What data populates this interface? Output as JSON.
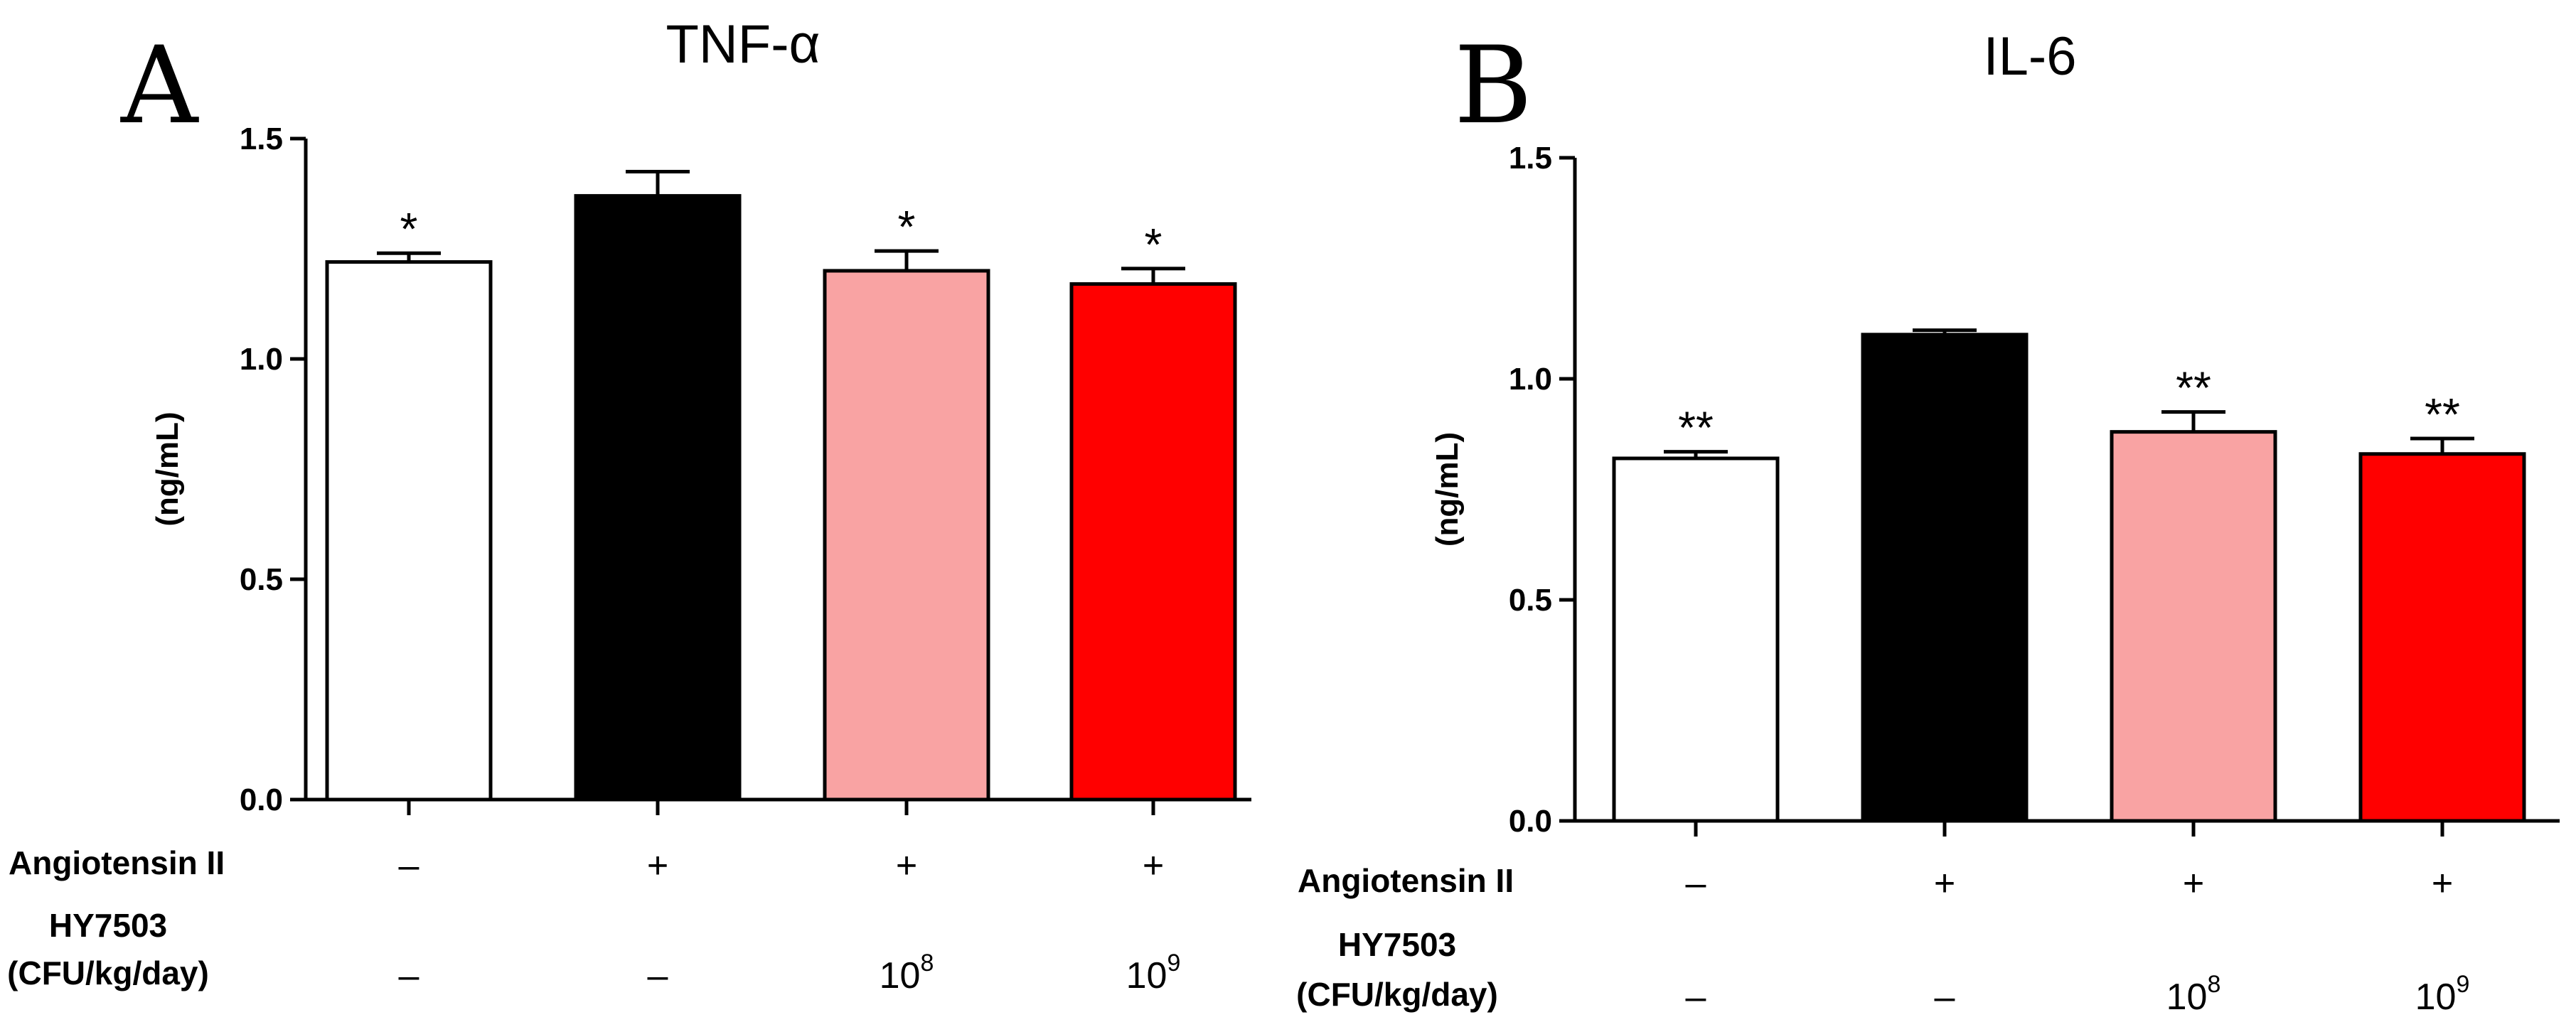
{
  "chart_data": [
    {
      "panel": "A",
      "type": "bar",
      "title": "TNF-α",
      "ylabel": "(ng/mL)",
      "ylim": [
        0,
        1.5
      ],
      "yticks": [
        "0.0",
        "0.5",
        "1.0",
        "1.5"
      ],
      "colors": [
        "#ffffff",
        "#000000",
        "#f9a3a3",
        "#ff0000"
      ],
      "values": [
        1.22,
        1.37,
        1.2,
        1.17
      ],
      "errors": [
        0.02,
        0.055,
        0.045,
        0.035
      ],
      "significance": [
        "*",
        "",
        "*",
        "*"
      ],
      "rows": [
        {
          "label": "Angiotensin II",
          "values": [
            "–",
            "+",
            "+",
            "+"
          ]
        },
        {
          "label_line1": "HY7503",
          "label_line2": "(CFU/kg/day)",
          "values": [
            {
              "base": "–",
              "sup": ""
            },
            {
              "base": "–",
              "sup": ""
            },
            {
              "base": "10",
              "sup": "8"
            },
            {
              "base": "10",
              "sup": "9"
            }
          ]
        }
      ]
    },
    {
      "panel": "B",
      "type": "bar",
      "title": "IL-6",
      "ylabel": "(ng/mL)",
      "ylim": [
        0,
        1.5
      ],
      "yticks": [
        "0.0",
        "0.5",
        "1.0",
        "1.5"
      ],
      "colors": [
        "#ffffff",
        "#000000",
        "#f9a3a3",
        "#ff0000"
      ],
      "values": [
        0.82,
        1.1,
        0.88,
        0.83
      ],
      "errors": [
        0.015,
        0.01,
        0.045,
        0.035
      ],
      "significance": [
        "**",
        "",
        "**",
        "**"
      ],
      "rows": [
        {
          "label": "Angiotensin II",
          "values": [
            "–",
            "+",
            "+",
            "+"
          ]
        },
        {
          "label_line1": "HY7503",
          "label_line2": "(CFU/kg/day)",
          "values": [
            {
              "base": "–",
              "sup": ""
            },
            {
              "base": "–",
              "sup": ""
            },
            {
              "base": "10",
              "sup": "8"
            },
            {
              "base": "10",
              "sup": "9"
            }
          ]
        }
      ]
    }
  ]
}
